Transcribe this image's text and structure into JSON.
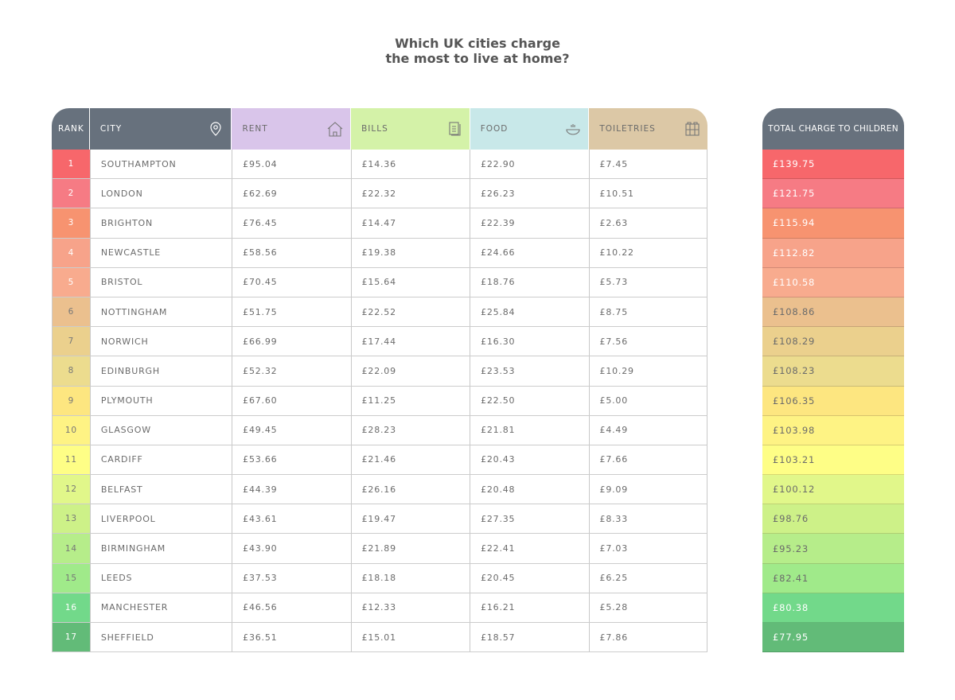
{
  "title_line1": "Which UK cities charge",
  "title_line2": "the most to live at home?",
  "headers": {
    "rank": "RANK",
    "city": "CITY",
    "rent": "RENT",
    "bills": "BILLS",
    "food": "FOOD",
    "toiletries": "TOILETRIES",
    "total": "TOTAL CHARGE TO CHILDREN"
  },
  "header_colors": {
    "dark": "#67717d",
    "rent": "#d9c5ea",
    "bills": "#d4f2a8",
    "food": "#c8e8e9",
    "toiletries": "#dcc8a6"
  },
  "icons": {
    "city": "map-pin-icon",
    "rent": "house-icon",
    "bills": "document-icon",
    "food": "bowl-icon",
    "toiletries": "toiletries-icon"
  },
  "chart_data": {
    "type": "table",
    "title": "Which UK cities charge the most to live at home?",
    "columns": [
      "RANK",
      "CITY",
      "RENT",
      "BILLS",
      "FOOD",
      "TOILETRIES",
      "TOTAL CHARGE TO CHILDREN"
    ],
    "rows": [
      {
        "rank": "1",
        "city": "SOUTHAMPTON",
        "rent": "£95.04",
        "bills": "£14.36",
        "food": "£22.90",
        "toiletries": "£7.45",
        "total": "£139.75",
        "color": "#f7676b",
        "light": true
      },
      {
        "rank": "2",
        "city": "LONDON",
        "rent": "£62.69",
        "bills": "£22.32",
        "food": "£26.23",
        "toiletries": "£10.51",
        "total": "£121.75",
        "color": "#f67b84",
        "light": true
      },
      {
        "rank": "3",
        "city": "BRIGHTON",
        "rent": "£76.45",
        "bills": "£14.47",
        "food": "£22.39",
        "toiletries": "£2.63",
        "total": "£115.94",
        "color": "#f79370",
        "light": true
      },
      {
        "rank": "4",
        "city": "NEWCASTLE",
        "rent": "£58.56",
        "bills": "£19.38",
        "food": "£24.66",
        "toiletries": "£10.22",
        "total": "£112.82",
        "color": "#f7a38a",
        "light": true
      },
      {
        "rank": "5",
        "city": "BRISTOL",
        "rent": "£70.45",
        "bills": "£15.64",
        "food": "£18.76",
        "toiletries": "£5.73",
        "total": "£110.58",
        "color": "#f8ab8e",
        "light": true
      },
      {
        "rank": "6",
        "city": "NOTTINGHAM",
        "rent": "£51.75",
        "bills": "£22.52",
        "food": "£25.84",
        "toiletries": "£8.75",
        "total": "£108.86",
        "color": "#ebc08e",
        "light": false
      },
      {
        "rank": "7",
        "city": "NORWICH",
        "rent": "£66.99",
        "bills": "£17.44",
        "food": "£16.30",
        "toiletries": "£7.56",
        "total": "£108.29",
        "color": "#ebd08d",
        "light": false
      },
      {
        "rank": "8",
        "city": "EDINBURGH",
        "rent": "£52.32",
        "bills": "£22.09",
        "food": "£23.53",
        "toiletries": "£10.29",
        "total": "£108.23",
        "color": "#ecdc8e",
        "light": false
      },
      {
        "rank": "9",
        "city": "PLYMOUTH",
        "rent": "£67.60",
        "bills": "£11.25",
        "food": "£22.50",
        "toiletries": "£5.00",
        "total": "£106.35",
        "color": "#fde680",
        "light": false
      },
      {
        "rank": "10",
        "city": "GLASGOW",
        "rent": "£49.45",
        "bills": "£28.23",
        "food": "£21.81",
        "toiletries": "£4.49",
        "total": "£103.98",
        "color": "#fef384",
        "light": false
      },
      {
        "rank": "11",
        "city": "CARDIFF",
        "rent": "£53.66",
        "bills": "£21.46",
        "food": "£20.43",
        "toiletries": "£7.66",
        "total": "£103.21",
        "color": "#fefe86",
        "light": false
      },
      {
        "rank": "12",
        "city": "BELFAST",
        "rent": "£44.39",
        "bills": "£26.16",
        "food": "£20.48",
        "toiletries": "£9.09",
        "total": "£100.12",
        "color": "#e1f78a",
        "light": false
      },
      {
        "rank": "13",
        "city": "LIVERPOOL",
        "rent": "£43.61",
        "bills": "£19.47",
        "food": "£27.35",
        "toiletries": "£8.33",
        "total": "£98.76",
        "color": "#cdf188",
        "light": false
      },
      {
        "rank": "14",
        "city": "BIRMINGHAM",
        "rent": "£43.90",
        "bills": "£21.89",
        "food": "£22.41",
        "toiletries": "£7.03",
        "total": "£95.23",
        "color": "#b6ed8a",
        "light": false
      },
      {
        "rank": "15",
        "city": "LEEDS",
        "rent": "£37.53",
        "bills": "£18.18",
        "food": "£20.45",
        "toiletries": "£6.25",
        "total": "£82.41",
        "color": "#a0ea8a",
        "light": false
      },
      {
        "rank": "16",
        "city": "MANCHESTER",
        "rent": "£46.56",
        "bills": "£12.33",
        "food": "£16.21",
        "toiletries": "£5.28",
        "total": "£80.38",
        "color": "#72d98a",
        "light": true
      },
      {
        "rank": "17",
        "city": "SHEFFIELD",
        "rent": "£36.51",
        "bills": "£15.01",
        "food": "£18.57",
        "toiletries": "£7.86",
        "total": "£77.95",
        "color": "#62bb78",
        "light": true
      }
    ]
  }
}
